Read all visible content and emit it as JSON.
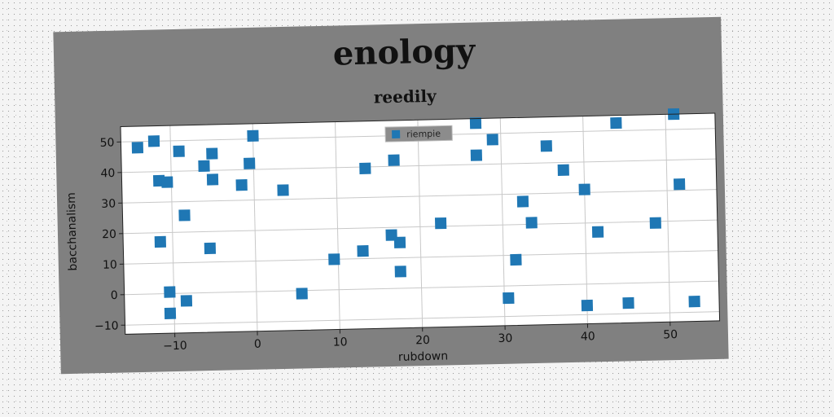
{
  "chart_data": {
    "type": "scatter",
    "suptitle": "enology",
    "title": "reedily",
    "xlabel": "rubdown",
    "ylabel": "bacchanalism",
    "xlim": [
      -16,
      56
    ],
    "ylim": [
      -13,
      55
    ],
    "xticks": [
      -10,
      0,
      10,
      20,
      30,
      40,
      50
    ],
    "yticks": [
      -10,
      0,
      10,
      20,
      30,
      40,
      50
    ],
    "grid": true,
    "legend_position": "top-center",
    "series": [
      {
        "name": "riempie",
        "color": "#1f77b4",
        "marker": "square",
        "points": [
          [
            -14,
            48
          ],
          [
            -12,
            50
          ],
          [
            -11.5,
            37
          ],
          [
            -10.5,
            36.5
          ],
          [
            -9,
            46.5
          ],
          [
            -8.5,
            25.5
          ],
          [
            -11.5,
            17
          ],
          [
            -10.5,
            0.5
          ],
          [
            -10.5,
            -6.5
          ],
          [
            -8.5,
            -2.5
          ],
          [
            -6,
            41.5
          ],
          [
            -5,
            45.5
          ],
          [
            -5,
            37
          ],
          [
            -5.5,
            14.5
          ],
          [
            -1.5,
            35
          ],
          [
            -0.5,
            42
          ],
          [
            0,
            51
          ],
          [
            3.5,
            33
          ],
          [
            5.5,
            -1
          ],
          [
            9.5,
            10
          ],
          [
            13,
            12.5
          ],
          [
            13.5,
            39.5
          ],
          [
            16.5,
            17.5
          ],
          [
            17,
            42
          ],
          [
            17.5,
            15
          ],
          [
            17.5,
            5.5
          ],
          [
            22.5,
            21
          ],
          [
            27,
            53.5
          ],
          [
            27,
            43
          ],
          [
            29,
            48
          ],
          [
            30.5,
            -4
          ],
          [
            31.5,
            8.5
          ],
          [
            32.5,
            27.5
          ],
          [
            33.5,
            20.5
          ],
          [
            35.5,
            45.5
          ],
          [
            37.5,
            37.5
          ],
          [
            40,
            31
          ],
          [
            40,
            -7
          ],
          [
            41.5,
            17
          ],
          [
            44,
            52.5
          ],
          [
            45,
            -6.5
          ],
          [
            48.5,
            19.5
          ],
          [
            51,
            55
          ],
          [
            51.5,
            32
          ],
          [
            53,
            -6.5
          ]
        ]
      }
    ]
  }
}
